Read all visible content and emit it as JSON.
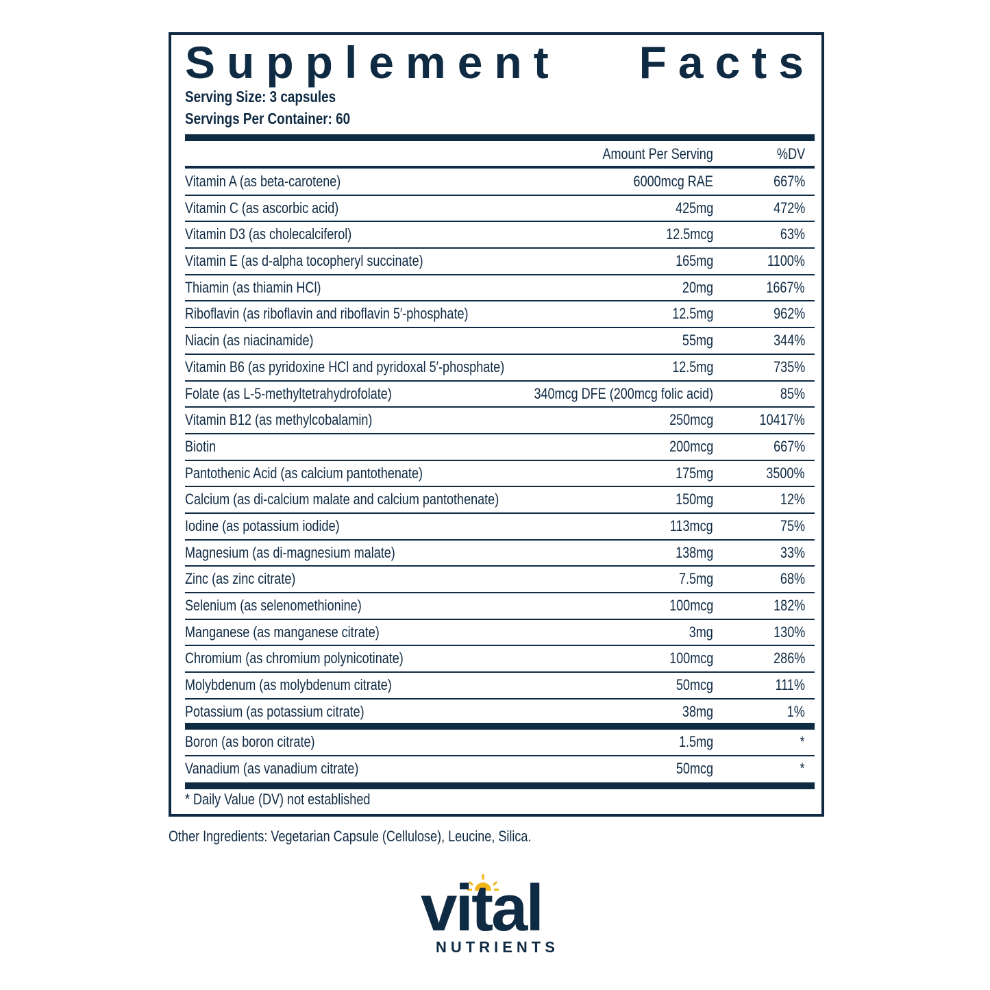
{
  "label": {
    "title_words": [
      "Supplement",
      "Facts"
    ],
    "serving_size": "Serving Size: 3 capsules",
    "servings_per_container": "Servings Per Container: 60",
    "header": {
      "amount": "Amount Per Serving",
      "dv": "%DV"
    },
    "rows": [
      {
        "name": "Vitamin A (as beta-carotene)",
        "amount": "6000mcg RAE",
        "dv": "667%"
      },
      {
        "name": "Vitamin C (as ascorbic acid)",
        "amount": "425mg",
        "dv": "472%"
      },
      {
        "name": "Vitamin D3 (as cholecalciferol)",
        "amount": "12.5mcg",
        "dv": "63%"
      },
      {
        "name": "Vitamin E (as d-alpha tocopheryl succinate)",
        "amount": "165mg",
        "dv": "1100%"
      },
      {
        "name": "Thiamin (as thiamin HCl)",
        "amount": "20mg",
        "dv": "1667%"
      },
      {
        "name": "Riboflavin (as riboflavin and riboflavin 5′-phosphate)",
        "amount": "12.5mg",
        "dv": "962%"
      },
      {
        "name": "Niacin (as niacinamide)",
        "amount": "55mg",
        "dv": "344%"
      },
      {
        "name": "Vitamin B6 (as pyridoxine HCl and pyridoxal 5′-phosphate)",
        "amount": "12.5mg",
        "dv": "735%"
      },
      {
        "name": "Folate (as L-5-methyltetrahydrofolate)",
        "amount": "340mcg DFE (200mcg folic acid)",
        "dv": "85%"
      },
      {
        "name": "Vitamin B12 (as methylcobalamin)",
        "amount": "250mcg",
        "dv": "10417%"
      },
      {
        "name": "Biotin",
        "amount": "200mcg",
        "dv": "667%"
      },
      {
        "name": "Pantothenic Acid (as calcium pantothenate)",
        "amount": "175mg",
        "dv": "3500%"
      },
      {
        "name": "Calcium (as di-calcium malate and calcium pantothenate)",
        "amount": "150mg",
        "dv": "12%"
      },
      {
        "name": "Iodine (as potassium iodide)",
        "amount": "113mcg",
        "dv": "75%"
      },
      {
        "name": "Magnesium (as di-magnesium malate)",
        "amount": "138mg",
        "dv": "33%"
      },
      {
        "name": "Zinc (as zinc citrate)",
        "amount": "7.5mg",
        "dv": "68%"
      },
      {
        "name": "Selenium (as selenomethionine)",
        "amount": "100mcg",
        "dv": "182%"
      },
      {
        "name": "Manganese (as manganese citrate)",
        "amount": "3mg",
        "dv": "130%"
      },
      {
        "name": "Chromium (as chromium polynicotinate)",
        "amount": "100mcg",
        "dv": "286%"
      },
      {
        "name": "Molybdenum (as molybdenum citrate)",
        "amount": "50mcg",
        "dv": "111%"
      },
      {
        "name": "Potassium (as potassium citrate)",
        "amount": "38mg",
        "dv": "1%"
      }
    ],
    "rows_no_dv": [
      {
        "name": "Boron (as boron citrate)",
        "amount": "1.5mg",
        "dv": "*"
      },
      {
        "name": "Vanadium (as vanadium citrate)",
        "amount": "50mcg",
        "dv": "*"
      }
    ],
    "footnote": "* Daily Value (DV) not established"
  },
  "other_ingredients": "Other Ingredients: Vegetarian Capsule (Cellulose), Leucine, Silica.",
  "brand": {
    "wordmark": "vital",
    "subline": "NUTRIENTS",
    "primary_color": "#0f2a43",
    "sun_color": "#f2b51c"
  }
}
